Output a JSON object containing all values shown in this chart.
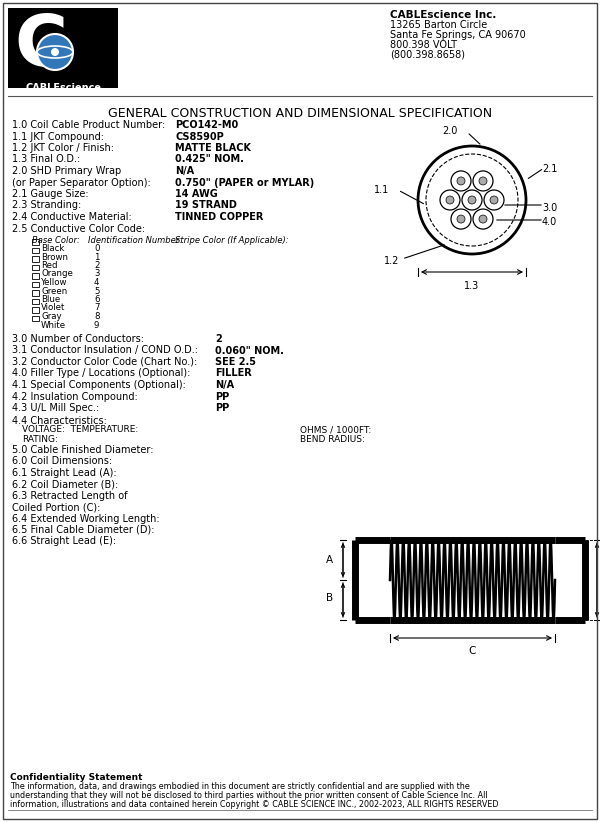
{
  "title": "GENERAL CONSTRUCTION AND DIMENSIONAL SPECIFICATION",
  "company_name": "CABLEscience Inc.",
  "company_address": [
    "13265 Barton Circle",
    "Santa Fe Springs, CA 90670",
    "800.398 VOLT",
    "(800.398.8658)"
  ],
  "bg_color": "#ffffff",
  "specs1": [
    [
      "1.0 Coil Cable Product Number:",
      "PCO142-M0"
    ],
    [
      "1.1 JKT Compound:",
      "CS8590P"
    ],
    [
      "1.2 JKT Color / Finish:",
      "MATTE BLACK"
    ],
    [
      "1.3 Final O.D.:",
      "0.425\" NOM."
    ],
    [
      "2.0 SHD Primary Wrap",
      "N/A"
    ],
    [
      "(or Paper Separator Option):",
      "0.750\" (PAPER or MYLAR)"
    ],
    [
      "2.1 Gauge Size:",
      "14 AWG"
    ],
    [
      "2.3 Stranding:",
      "19 STRAND"
    ],
    [
      "2.4 Conductive Material:",
      "TINNED COPPER"
    ],
    [
      "2.5 Conductive Color Code:",
      ""
    ]
  ],
  "color_headers": [
    "Base Color:",
    "Identification Number:",
    "Stripe Color (If Applicable):"
  ],
  "color_rows": [
    [
      "Black",
      "0"
    ],
    [
      "Brown",
      "1"
    ],
    [
      "Red",
      "2"
    ],
    [
      "Orange",
      "3"
    ],
    [
      "Yellow",
      "4"
    ],
    [
      "Green",
      "5"
    ],
    [
      "Blue",
      "6"
    ],
    [
      "Violet",
      "7"
    ],
    [
      "Gray",
      "8"
    ],
    [
      "White",
      "9"
    ]
  ],
  "specs2": [
    [
      "3.0 Number of Conductors:",
      "2"
    ],
    [
      "3.1 Conductor Insulation / COND O.D.:",
      "0.060\" NOM."
    ],
    [
      "3.2 Conductor Color Code (Chart No.):",
      "SEE 2.5"
    ],
    [
      "4.0 Filler Type / Locations (Optional):",
      "FILLER"
    ],
    [
      "4.1 Special Components (Optional):",
      "N/A"
    ],
    [
      "4.2 Insulation Compound:",
      "PP"
    ],
    [
      "4.3 U/L Mill Spec.:",
      "PP"
    ]
  ],
  "char_label": "4.4 Characteristics:",
  "voltage_line": "VOLTAGE:  TEMPERATURE:",
  "rating_line": "RATING:",
  "ohms_line": "OHMS / 1000FT:",
  "bend_line": "BEND RADIUS:",
  "specs3": [
    "5.0 Cable Finished Diameter:",
    "6.0 Coil Dimensions:",
    "6.1 Straight Lead (A):",
    "6.2 Coil Diameter (B):",
    "6.3 Retracted Length of",
    "Coiled Portion (C):",
    "6.4 Extended Working Length:",
    "6.5 Final Cable Diameter (D):",
    "6.6 Straight Lead (E):"
  ],
  "conf_title": "Confidentiality Statement",
  "conf_body": [
    "The information, data, and drawings embodied in this document are strictly confidential and are supplied with the",
    "understanding that they will not be disclosed to third parties without the prior written consent of Cable Science Inc. All",
    "information, illustrations and data contained herein Copyright © CABLE SCIENCE INC., 2002-2023, ALL RIGHTS RESERVED"
  ]
}
